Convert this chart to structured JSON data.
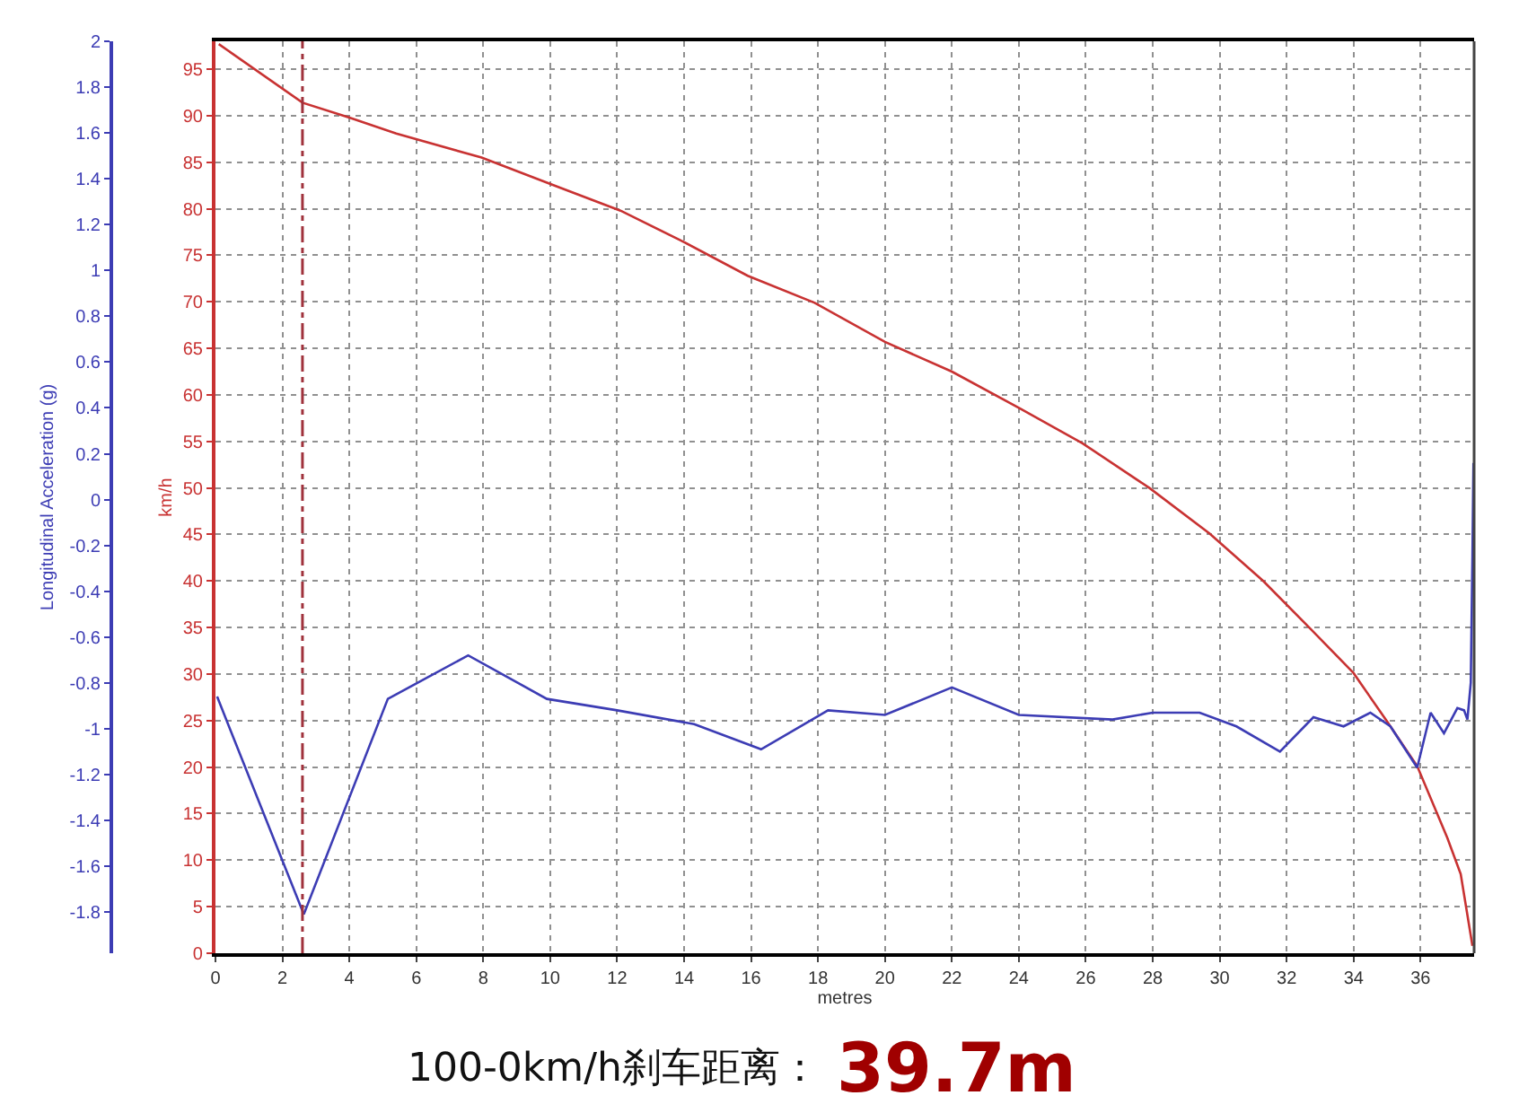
{
  "chart_data": {
    "type": "line",
    "xlabel": "metres",
    "ylabel": "km/h",
    "y2label": "Longitudinal Acceleration (g)",
    "xlim": [
      0,
      37.6
    ],
    "xticks": [
      0,
      2,
      4,
      6,
      8,
      10,
      12,
      14,
      16,
      18,
      20,
      22,
      24,
      26,
      28,
      30,
      32,
      34,
      36
    ],
    "ylim": [
      0,
      98
    ],
    "yticks": [
      0,
      5,
      10,
      15,
      20,
      25,
      30,
      35,
      40,
      45,
      50,
      55,
      60,
      65,
      70,
      75,
      80,
      85,
      90,
      95
    ],
    "y2lim": [
      -1.98,
      2
    ],
    "y2ticks": [
      2,
      1.8,
      1.6,
      1.4,
      1.2,
      1,
      0.8,
      0.6,
      0.4,
      0.2,
      0,
      -0.2,
      -0.4,
      -0.6,
      -0.8,
      -1,
      -1.2,
      -1.4,
      -1.6,
      -1.8
    ],
    "grid": true,
    "legend": false,
    "marker": "none",
    "line_style": "solid",
    "series": [
      {
        "color": "#c83232",
        "x": [
          0.1,
          2.6,
          4.0,
          5.4,
          7.95,
          10.2,
          12.1,
          13.9,
          15.9,
          17.9,
          20.0,
          22.0,
          24.0,
          25.9,
          27.9,
          29.7,
          31.3,
          32.7,
          34.0,
          35.0,
          35.9,
          36.8,
          37.2,
          37.55
        ],
        "values": [
          97.7,
          91.4,
          89.8,
          88.1,
          85.5,
          82.4,
          79.8,
          76.6,
          72.8,
          69.9,
          65.7,
          62.5,
          58.6,
          54.8,
          50.0,
          45.1,
          40.0,
          34.9,
          30.1,
          24.9,
          20.1,
          12.4,
          8.5,
          0.8
        ]
      },
      {
        "color": "#3c3cb4",
        "axis": "y2",
        "x": [
          0.05,
          2.64,
          5.15,
          7.55,
          9.9,
          12.0,
          14.3,
          16.3,
          18.3,
          20.0,
          22.0,
          24.0,
          26.8,
          28.0,
          29.4,
          30.5,
          31.8,
          32.8,
          33.7,
          34.5,
          35.1,
          35.9,
          36.3,
          36.7,
          37.1,
          37.3,
          37.4,
          37.5,
          37.55,
          37.58
        ],
        "values": [
          -0.86,
          -1.81,
          -0.87,
          -0.68,
          -0.87,
          -0.92,
          -0.98,
          -1.09,
          -0.92,
          -0.94,
          -0.82,
          -0.94,
          -0.96,
          -0.93,
          -0.93,
          -0.99,
          -1.1,
          -0.95,
          -0.99,
          -0.93,
          -0.99,
          -1.17,
          -0.93,
          -1.02,
          -0.91,
          -0.92,
          -0.96,
          -0.8,
          -0.25,
          0.16
        ]
      }
    ],
    "ref_lines": [
      {
        "axis": "x",
        "value": 2.6,
        "color": "#a0323c",
        "line_style": "dashed"
      }
    ],
    "annotations": [
      "100-0km/h刹车距离：",
      "39.7m"
    ]
  }
}
